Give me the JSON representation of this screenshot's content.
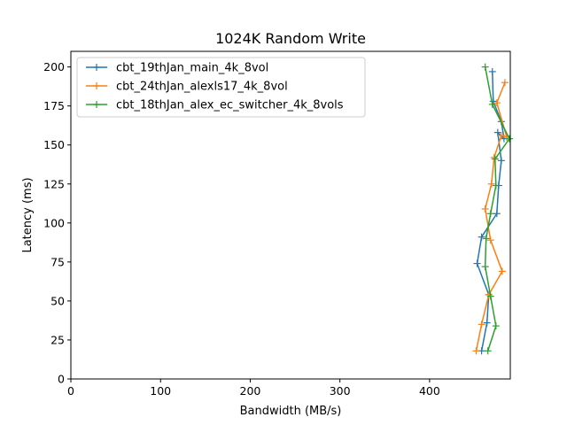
{
  "chart_data": {
    "type": "line",
    "title": "1024K  Random Write",
    "xlabel": "Bandwidth (MB/s)",
    "ylabel": "Latency (ms)",
    "xlim": [
      0,
      490
    ],
    "ylim": [
      0,
      210
    ],
    "xticks": [
      0,
      100,
      200,
      300,
      400
    ],
    "yticks": [
      0,
      25,
      50,
      75,
      100,
      125,
      150,
      175,
      200
    ],
    "legend_position": "upper-left",
    "series": [
      {
        "name": "cbt_19thJan_main_4k_8vol",
        "color": "#1f77b4",
        "points": [
          [
            458,
            18
          ],
          [
            464,
            36
          ],
          [
            466,
            54
          ],
          [
            453,
            74
          ],
          [
            458,
            91
          ],
          [
            475,
            106
          ],
          [
            477,
            124
          ],
          [
            480,
            140
          ],
          [
            476,
            158
          ],
          [
            483,
            154
          ],
          [
            480,
            165
          ],
          [
            471,
            178
          ],
          [
            470,
            197
          ]
        ]
      },
      {
        "name": "cbt_24thJan_alexls17_4k_8vol",
        "color": "#ff7f0e",
        "points": [
          [
            452,
            18
          ],
          [
            458,
            35
          ],
          [
            466,
            54
          ],
          [
            481,
            69
          ],
          [
            468,
            89
          ],
          [
            462,
            109
          ],
          [
            469,
            125
          ],
          [
            472,
            142
          ],
          [
            480,
            156
          ],
          [
            486,
            155
          ],
          [
            475,
            177
          ],
          [
            484,
            190
          ]
        ]
      },
      {
        "name": "cbt_18thJan_alex_ec_switcher_4k_8vols",
        "color": "#2ca02c",
        "points": [
          [
            465,
            18
          ],
          [
            474,
            34
          ],
          [
            468,
            53
          ],
          [
            462,
            72
          ],
          [
            463,
            90
          ],
          [
            468,
            106
          ],
          [
            474,
            124
          ],
          [
            473,
            141
          ],
          [
            489,
            154
          ],
          [
            470,
            176
          ],
          [
            462,
            200
          ]
        ]
      }
    ]
  }
}
